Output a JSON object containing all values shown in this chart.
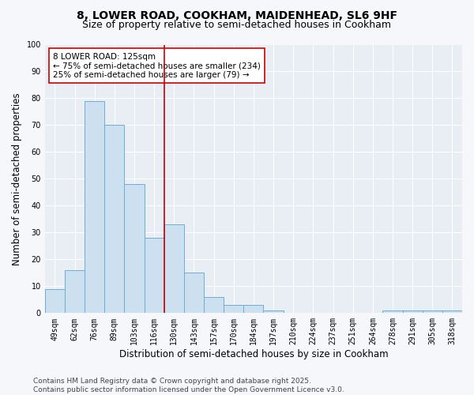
{
  "title1": "8, LOWER ROAD, COOKHAM, MAIDENHEAD, SL6 9HF",
  "title2": "Size of property relative to semi-detached houses in Cookham",
  "xlabel": "Distribution of semi-detached houses by size in Cookham",
  "ylabel": "Number of semi-detached properties",
  "categories": [
    "49sqm",
    "62sqm",
    "76sqm",
    "89sqm",
    "103sqm",
    "116sqm",
    "130sqm",
    "143sqm",
    "157sqm",
    "170sqm",
    "184sqm",
    "197sqm",
    "210sqm",
    "224sqm",
    "237sqm",
    "251sqm",
    "264sqm",
    "278sqm",
    "291sqm",
    "305sqm",
    "318sqm"
  ],
  "values": [
    9,
    16,
    79,
    70,
    48,
    28,
    33,
    15,
    6,
    3,
    3,
    1,
    0,
    0,
    0,
    0,
    0,
    1,
    1,
    1,
    1
  ],
  "bar_color": "#cce0f0",
  "bar_edge_color": "#6aaed6",
  "vline_color": "#cc0000",
  "vline_x_index": 5.5,
  "subject_label": "8 LOWER ROAD: 125sqm",
  "annotation_line1": "← 75% of semi-detached houses are smaller (234)",
  "annotation_line2": "25% of semi-detached houses are larger (79) →",
  "annotation_box_facecolor": "white",
  "annotation_box_edgecolor": "#cc0000",
  "ylim": [
    0,
    100
  ],
  "yticks": [
    0,
    10,
    20,
    30,
    40,
    50,
    60,
    70,
    80,
    90,
    100
  ],
  "footer1": "Contains HM Land Registry data © Crown copyright and database right 2025.",
  "footer2": "Contains public sector information licensed under the Open Government Licence v3.0.",
  "plot_bg_color": "#e8eef4",
  "fig_bg_color": "#f5f7fa",
  "grid_color": "white",
  "title_fontsize": 10,
  "subtitle_fontsize": 9,
  "axis_label_fontsize": 8.5,
  "tick_fontsize": 7,
  "annotation_fontsize": 7.5,
  "footer_fontsize": 6.5
}
